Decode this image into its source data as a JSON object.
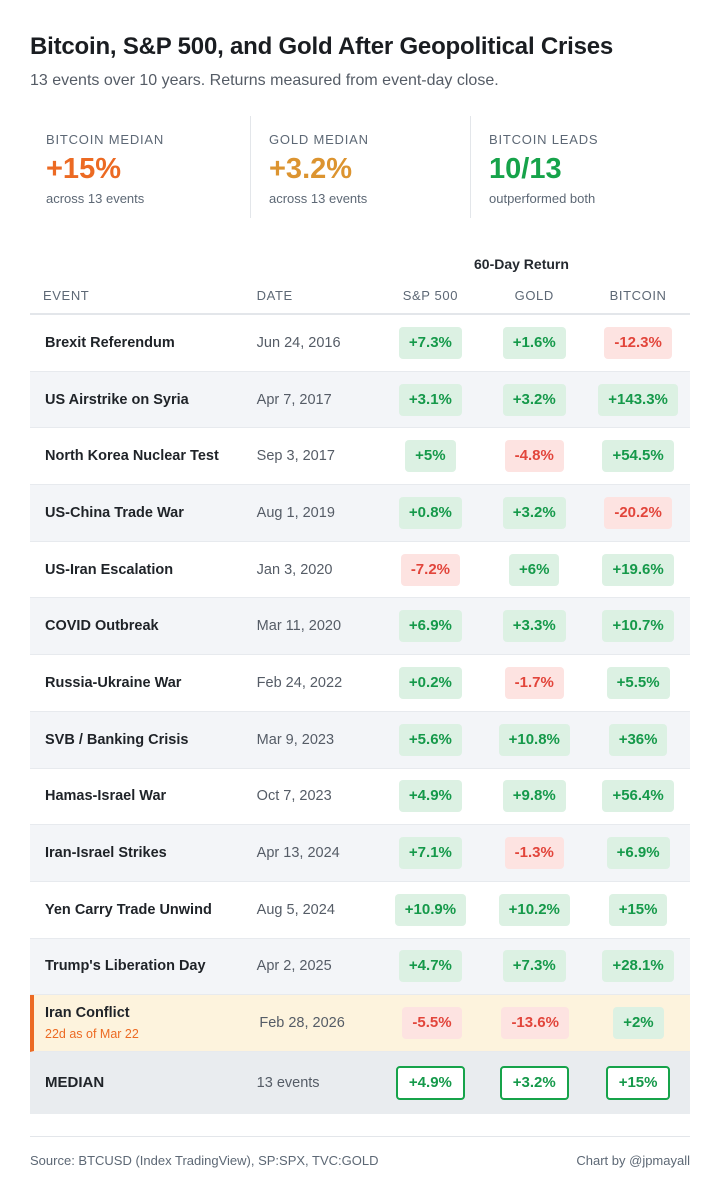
{
  "header": {
    "title": "Bitcoin, S&P 500, and Gold After Geopolitical Crises",
    "subtitle": "13 events over 10 years. Returns measured from event-day close."
  },
  "stats": [
    {
      "label": "BITCOIN MEDIAN",
      "value": "+15%",
      "note": "across 13 events",
      "color": "#ec6a23"
    },
    {
      "label": "GOLD MEDIAN",
      "value": "+3.2%",
      "note": "across 13 events",
      "color": "#dc9430"
    },
    {
      "label": "BITCOIN LEADS",
      "value": "10/13",
      "note": "outperformed both",
      "color": "#16a34a"
    }
  ],
  "table": {
    "group_header": "60-Day Return",
    "columns": [
      "EVENT",
      "DATE",
      "S&P 500",
      "GOLD",
      "BITCOIN"
    ],
    "rows": [
      {
        "event": "Brexit Referendum",
        "date": "Jun 24, 2016",
        "sp500": "+7.3%",
        "gold": "+1.6%",
        "bitcoin": "-12.3%"
      },
      {
        "event": "US Airstrike on Syria",
        "date": "Apr 7, 2017",
        "sp500": "+3.1%",
        "gold": "+3.2%",
        "bitcoin": "+143.3%"
      },
      {
        "event": "North Korea Nuclear Test",
        "date": "Sep 3, 2017",
        "sp500": "+5%",
        "gold": "-4.8%",
        "bitcoin": "+54.5%"
      },
      {
        "event": "US-China Trade War",
        "date": "Aug 1, 2019",
        "sp500": "+0.8%",
        "gold": "+3.2%",
        "bitcoin": "-20.2%"
      },
      {
        "event": "US-Iran Escalation",
        "date": "Jan 3, 2020",
        "sp500": "-7.2%",
        "gold": "+6%",
        "bitcoin": "+19.6%"
      },
      {
        "event": "COVID Outbreak",
        "date": "Mar 11, 2020",
        "sp500": "+6.9%",
        "gold": "+3.3%",
        "bitcoin": "+10.7%"
      },
      {
        "event": "Russia-Ukraine War",
        "date": "Feb 24, 2022",
        "sp500": "+0.2%",
        "gold": "-1.7%",
        "bitcoin": "+5.5%"
      },
      {
        "event": "SVB / Banking Crisis",
        "date": "Mar 9, 2023",
        "sp500": "+5.6%",
        "gold": "+10.8%",
        "bitcoin": "+36%"
      },
      {
        "event": "Hamas-Israel War",
        "date": "Oct 7, 2023",
        "sp500": "+4.9%",
        "gold": "+9.8%",
        "bitcoin": "+56.4%"
      },
      {
        "event": "Iran-Israel Strikes",
        "date": "Apr 13, 2024",
        "sp500": "+7.1%",
        "gold": "-1.3%",
        "bitcoin": "+6.9%"
      },
      {
        "event": "Yen Carry Trade Unwind",
        "date": "Aug 5, 2024",
        "sp500": "+10.9%",
        "gold": "+10.2%",
        "bitcoin": "+15%"
      },
      {
        "event": "Trump's Liberation Day",
        "date": "Apr 2, 2025",
        "sp500": "+4.7%",
        "gold": "+7.3%",
        "bitcoin": "+28.1%"
      },
      {
        "event": "Iran Conflict",
        "sub": "22d as of Mar 22",
        "date": "Feb 28, 2026",
        "sp500": "-5.5%",
        "gold": "-13.6%",
        "bitcoin": "+2%",
        "highlight": true
      }
    ],
    "median": {
      "label": "MEDIAN",
      "date": "13 events",
      "sp500": "+4.9%",
      "gold": "+3.2%",
      "bitcoin": "+15%"
    }
  },
  "footer": {
    "source": "Source: BTCUSD (Index TradingView), SP:SPX, TVC:GOLD",
    "credit": "Chart by @jpmayall"
  },
  "colors": {
    "positive": "#15994a",
    "negative": "#e2453b",
    "highlight": "#fdf3dd",
    "accent": "#ec6a23"
  }
}
